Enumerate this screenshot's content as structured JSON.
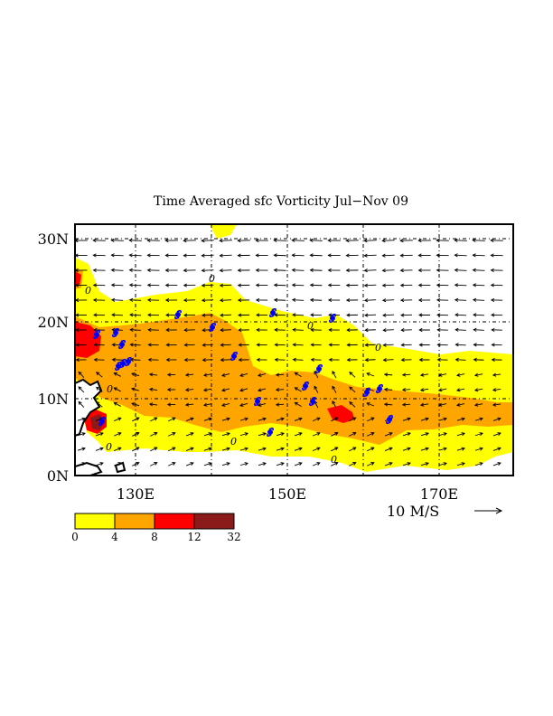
{
  "title": "Time Averaged sfc Vorticity  Jul−Nov  09",
  "map": {
    "lat_ticks": [
      "30N",
      "20N",
      "10N",
      "0N"
    ],
    "lat_values": [
      30,
      20,
      10,
      0
    ],
    "lon_ticks": [
      "130E",
      "150E",
      "170E"
    ],
    "lon_values": [
      130,
      150,
      170
    ],
    "lon_range": [
      120,
      180
    ],
    "lat_range": [
      0,
      32
    ],
    "grid": true,
    "contour_label": "0"
  },
  "colorbar": {
    "ticks": [
      "0",
      "4",
      "8",
      "12",
      "32"
    ],
    "colors": [
      "#ffff00",
      "#ffa500",
      "#ff0000",
      "#8b1a1a"
    ]
  },
  "vector_reference": {
    "label": "10 M/S"
  },
  "colors": {
    "yellow": "#ffff00",
    "orange": "#ffa500",
    "red": "#ff0000",
    "darkred": "#8b1a1a",
    "cyclone": "#0000ff"
  }
}
